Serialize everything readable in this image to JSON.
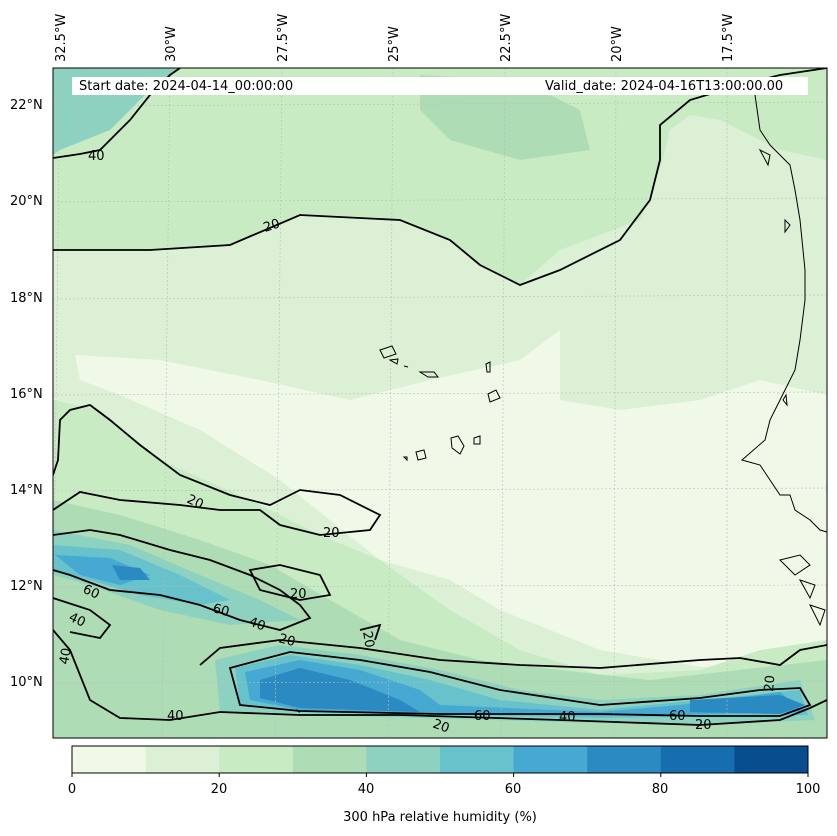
{
  "header": {
    "start_date": "Start date: 2024-04-14_00:00:00",
    "valid_date": "Valid_date: 2024-04-16T13:00:00.00"
  },
  "axes": {
    "longitude_ticks": [
      "32.5°W",
      "30°W",
      "27.5°W",
      "25°W",
      "22.5°W",
      "20°W",
      "17.5°W"
    ],
    "latitude_ticks": [
      "22°N",
      "20°N",
      "18°N",
      "16°N",
      "14°N",
      "12°N",
      "10°N"
    ]
  },
  "contour_labels": [
    "40",
    "20",
    "20",
    "20",
    "20",
    "20",
    "60",
    "60",
    "40",
    "20",
    "20",
    "40",
    "40",
    "40",
    "20",
    "60",
    "40",
    "60",
    "20",
    "20"
  ],
  "colorbar": {
    "ticks": [
      "0",
      "20",
      "40",
      "60",
      "80",
      "100"
    ],
    "label": "300 hPa relative humidity (%)",
    "colors": [
      "#f0f9e8",
      "#dcf0d6",
      "#c9ebc4",
      "#addcb5",
      "#8dd2c0",
      "#68c2cb",
      "#45a9d1",
      "#2b8ac1",
      "#166eb0",
      "#084e8e"
    ]
  },
  "legend_colors": {
    "land_line": "#000000",
    "grid": "#bbbbbb"
  }
}
